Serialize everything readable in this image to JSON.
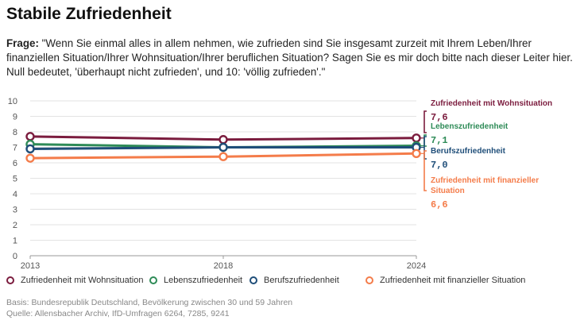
{
  "title": "Stabile Zufriedenheit",
  "question_label": "Frage:",
  "question_text": " \"Wenn Sie einmal alles in allem nehmen, wie zufrieden sind Sie insgesamt zurzeit mit Ihrem Leben/Ihrer finanziellen Situation/Ihrer Wohnsituation/Ihrer beruflichen Situation? Sagen Sie es mir doch bitte nach dieser Leiter hier. Null bedeutet, 'überhaupt nicht zufrieden', und 10: 'völlig zufrieden'.\"",
  "footnote_basis": "Basis: Bundesrepublik Deutschland, Bevölkerung zwischen 30 und 59 Jahren",
  "footnote_source": "Quelle: Allensbacher Archiv, IfD-Umfragen 6264, 7285, 9241",
  "chart_data": {
    "type": "line",
    "x": [
      "2013",
      "2018",
      "2024"
    ],
    "ylim": [
      0,
      10
    ],
    "yticks": [
      0,
      1,
      2,
      3,
      4,
      5,
      6,
      7,
      8,
      9,
      10
    ],
    "grid": true,
    "legend_position": "bottom",
    "series": [
      {
        "name": "Zufriedenheit mit Wohnsituation",
        "values": [
          7.7,
          7.5,
          7.6
        ],
        "color": "#7b1c3e",
        "end_label": "7,6",
        "annotation": [
          "Zufriedenheit mit Wohnsituation"
        ]
      },
      {
        "name": "Lebenszufriedenheit",
        "values": [
          7.2,
          7.0,
          7.1
        ],
        "color": "#2e8b57",
        "end_label": "7,1",
        "annotation": [
          "Lebenszufriedenheit"
        ]
      },
      {
        "name": "Berufszufriedenheit",
        "values": [
          6.9,
          7.0,
          7.0
        ],
        "color": "#1f4e79",
        "end_label": "7,0",
        "annotation": [
          "Berufszufriedenheit"
        ]
      },
      {
        "name": "Zufriedenheit mit finanzieller Situation",
        "values": [
          6.3,
          6.4,
          6.6
        ],
        "color": "#f47c4a",
        "end_label": "6,6",
        "annotation": [
          "Zufriedenheit mit finanzieller",
          "Situation"
        ]
      }
    ]
  }
}
